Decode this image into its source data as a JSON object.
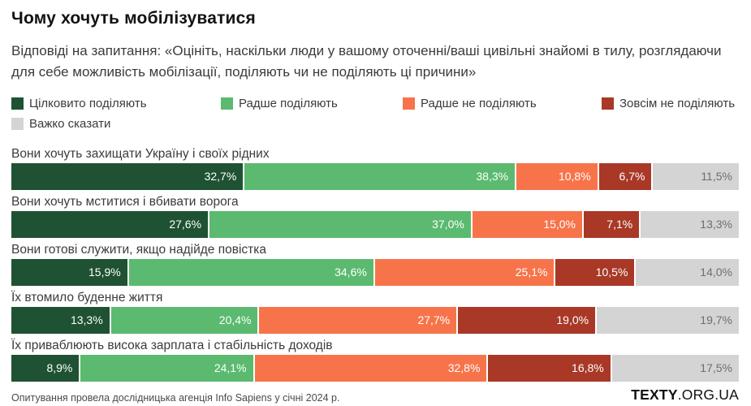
{
  "header": {
    "title": "Чому хочуть мобілізуватися",
    "subtitle": "Відповіді на запитання: «Оцініть, наскільки люди у вашому оточенні/ваші цивільні знайомі в тилу, розглядаючи для себе можливість мобілізації, поділяють чи не поділяють ці причини»"
  },
  "legend": [
    {
      "label": "Цілковито поділяють",
      "color": "#1e5233"
    },
    {
      "label": "Радше поділяють",
      "color": "#5bba6f"
    },
    {
      "label": "Радше не поділяють",
      "color": "#f7744b"
    },
    {
      "label": "Зовсім не поділяють",
      "color": "#a93827"
    },
    {
      "label": "Важко сказати",
      "color": "#d4d4d4"
    }
  ],
  "chart_data": {
    "type": "bar",
    "stacked": true,
    "orientation": "horizontal",
    "unit": "%",
    "xlim": [
      0,
      100
    ],
    "value_format": "decimal-comma-percent",
    "categories": [
      "Вони хочуть захищати Україну і своїх рідних",
      "Вони хочуть мститися і вбивати ворога",
      "Вони готові служити, якщо надійде повістка",
      "Їх втомило буденне життя",
      "Їх приваблюють висока зарплата і стабільність доходів"
    ],
    "series": [
      {
        "name": "Цілковито поділяють",
        "color": "#1e5233",
        "label_color": "#ffffff",
        "values": [
          32.7,
          27.6,
          15.9,
          13.3,
          8.9
        ]
      },
      {
        "name": "Радше поділяють",
        "color": "#5bba6f",
        "label_color": "#ffffff",
        "values": [
          38.3,
          37.0,
          34.6,
          20.4,
          24.1
        ]
      },
      {
        "name": "Радше не поділяють",
        "color": "#f7744b",
        "label_color": "#ffffff",
        "values": [
          10.8,
          15.0,
          25.1,
          27.7,
          32.8
        ]
      },
      {
        "name": "Зовсім не поділяють",
        "color": "#a93827",
        "label_color": "#ffffff",
        "values": [
          6.7,
          7.1,
          10.5,
          19.0,
          16.8
        ]
      },
      {
        "name": "Важко сказати",
        "color": "#d4d4d4",
        "label_color": "#6e6e6e",
        "values": [
          11.5,
          13.3,
          14.0,
          19.7,
          17.5
        ]
      }
    ]
  },
  "footer": {
    "source": "Опитування провела дослідницька агенція Info Sapiens у січні 2024 р.",
    "logo_bold": "TEXTY",
    "logo_rest": ".ORG.UA"
  }
}
